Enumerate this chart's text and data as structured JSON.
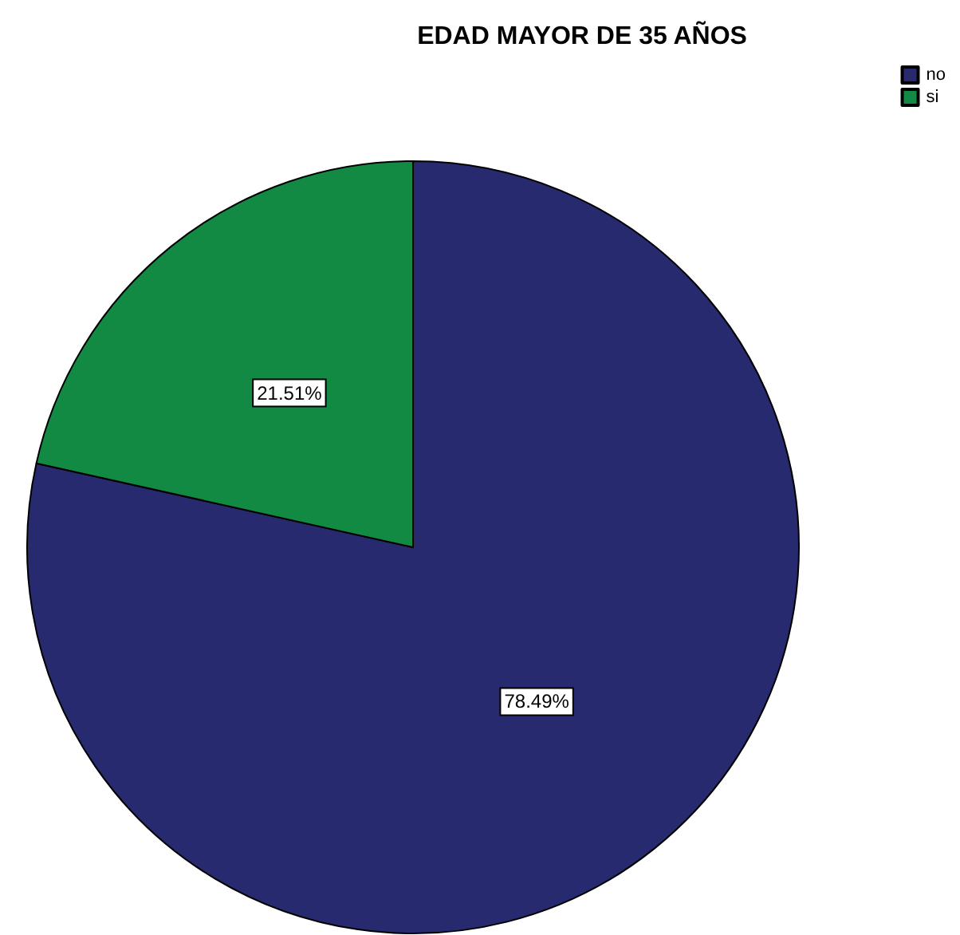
{
  "chart_data": {
    "type": "pie",
    "title": "EDAD MAYOR DE 35 AÑOS",
    "categories": [
      "no",
      "si"
    ],
    "values": [
      78.49,
      21.51
    ],
    "colors": [
      "#272a6e",
      "#128a44"
    ],
    "value_labels": [
      "78.49%",
      "21.51%"
    ],
    "legend": "top right"
  }
}
